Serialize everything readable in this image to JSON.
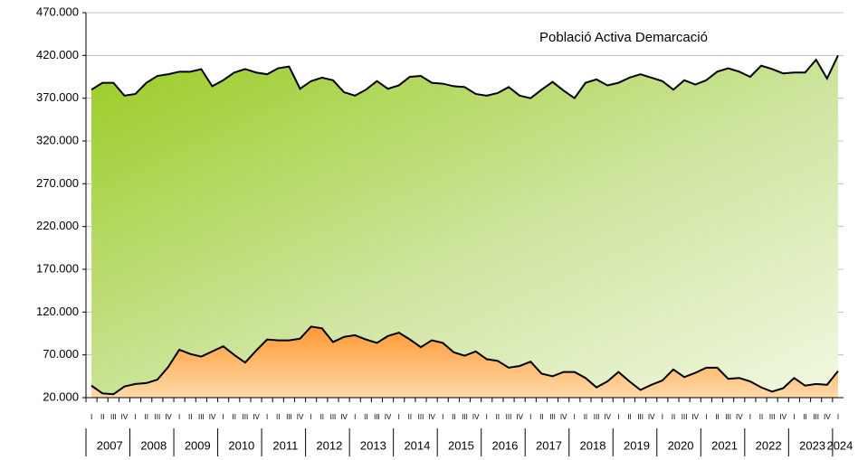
{
  "chart_data": {
    "type": "area",
    "legend_title": "Població Activa Demarcació",
    "categories": [
      "I",
      "II",
      "III",
      "IV",
      "I",
      "II",
      "III",
      "IV",
      "I",
      "II",
      "III",
      "IV",
      "I",
      "II",
      "III",
      "IV",
      "I",
      "II",
      "III",
      "IV",
      "I",
      "II",
      "III",
      "IV",
      "I",
      "II",
      "III",
      "IV",
      "I",
      "II",
      "III",
      "IV",
      "I",
      "II",
      "III",
      "IV",
      "I",
      "II",
      "III",
      "IV",
      "I",
      "II",
      "III",
      "IV",
      "I",
      "II",
      "III",
      "IV",
      "I",
      "II",
      "III",
      "IV",
      "I",
      "II",
      "III",
      "IV",
      "I",
      "II",
      "III",
      "IV",
      "I",
      "II",
      "III",
      "IV",
      "I",
      "II",
      "III",
      "IV",
      "I"
    ],
    "years": [
      "2007",
      "2008",
      "2009",
      "2010",
      "2011",
      "2012",
      "2013",
      "2014",
      "2015",
      "2016",
      "2017",
      "2018",
      "2019",
      "2020",
      "2021",
      "2022",
      "2023",
      "2024"
    ],
    "series": [
      {
        "name": "Població Activa Demarcació",
        "color": "#9acd32",
        "values": [
          380000,
          388000,
          388000,
          373000,
          375000,
          388000,
          396000,
          398000,
          401000,
          401000,
          404000,
          384000,
          391000,
          400000,
          404000,
          400000,
          398000,
          405000,
          407000,
          381000,
          390000,
          394000,
          391000,
          377000,
          373000,
          380000,
          390000,
          381000,
          385000,
          395000,
          396000,
          388000,
          387000,
          384000,
          383000,
          375000,
          373000,
          376000,
          383000,
          373000,
          370000,
          380000,
          389000,
          379000,
          370000,
          388000,
          392000,
          385000,
          388000,
          394000,
          398000,
          394000,
          390000,
          380000,
          391000,
          386000,
          391000,
          401000,
          405000,
          401000,
          395000,
          408000,
          404000,
          399000,
          400000,
          400000,
          415000,
          393000,
          420000
        ]
      },
      {
        "color": "#ff9933",
        "values": [
          34000,
          25000,
          24000,
          33000,
          36000,
          37000,
          41000,
          56000,
          76000,
          71000,
          68000,
          74000,
          80000,
          70000,
          61000,
          75000,
          88000,
          87000,
          87000,
          89000,
          103000,
          101000,
          85000,
          91000,
          93000,
          88000,
          84000,
          92000,
          96000,
          88000,
          79000,
          87000,
          84000,
          73000,
          69000,
          74000,
          65000,
          63000,
          55000,
          57000,
          62000,
          48000,
          45000,
          50000,
          50000,
          43000,
          32000,
          39000,
          50000,
          39000,
          29000,
          35000,
          40000,
          53000,
          44000,
          49000,
          55000,
          55000,
          42000,
          43000,
          39000,
          32000,
          27000,
          31000,
          43000,
          34000,
          36000,
          35000,
          51000
        ]
      }
    ],
    "ylim": [
      20000,
      470000
    ],
    "yticks": [
      {
        "value": 20000,
        "label": "20.000"
      },
      {
        "value": 70000,
        "label": "70.000"
      },
      {
        "value": 120000,
        "label": "120.000"
      },
      {
        "value": 170000,
        "label": "170.000"
      },
      {
        "value": 220000,
        "label": "220.000"
      },
      {
        "value": 270000,
        "label": "270.000"
      },
      {
        "value": 320000,
        "label": "320.000"
      },
      {
        "value": 370000,
        "label": "370.000"
      },
      {
        "value": 420000,
        "label": "420.000"
      },
      {
        "value": 470000,
        "label": "470.000"
      }
    ],
    "grid": true
  }
}
